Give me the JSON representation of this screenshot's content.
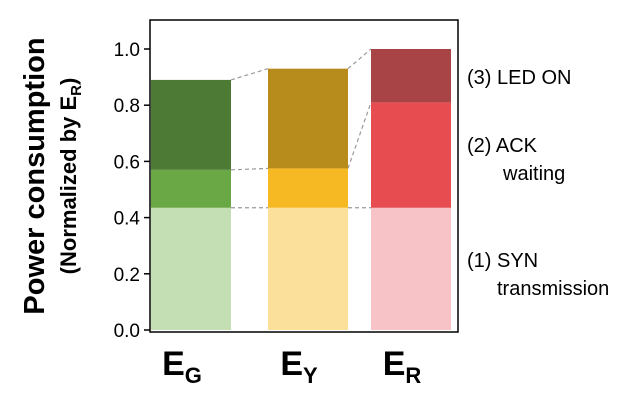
{
  "chart_data": {
    "type": "bar",
    "stacked": true,
    "categories": [
      {
        "main": "E",
        "sub": "G"
      },
      {
        "main": "E",
        "sub": "Y"
      },
      {
        "main": "E",
        "sub": "R"
      }
    ],
    "series": [
      {
        "label": "(1) SYN transmission",
        "values": [
          0.435,
          0.435,
          0.435
        ],
        "colors": [
          "#c5dfb4",
          "#fbe09b",
          "#f7c3c6"
        ]
      },
      {
        "label": "(2) ACK waiting",
        "values": [
          0.135,
          0.14,
          0.375
        ],
        "colors": [
          "#6aa845",
          "#f6b923",
          "#e64c50"
        ]
      },
      {
        "label": "(3) LED ON",
        "values": [
          0.32,
          0.355,
          0.19
        ],
        "colors": [
          "#4d7a34",
          "#b88c1c",
          "#a94446"
        ]
      }
    ],
    "ylabel": {
      "main": "Power consumption",
      "sub_prefix": "(Normalized by E",
      "sub_sub": "R",
      "sub_suffix": ")"
    },
    "ylim": [
      0,
      1.0
    ],
    "yticks": [
      "0.0",
      "0.2",
      "0.4",
      "0.6",
      "0.8",
      "1.0"
    ],
    "annotations": [
      {
        "line1": "(3) LED ON",
        "line2": ""
      },
      {
        "line1": "(2) ACK",
        "line2": "waiting"
      },
      {
        "line1": "(1) SYN",
        "line2": "transmission"
      }
    ],
    "connector_style": "dashed-gray"
  }
}
